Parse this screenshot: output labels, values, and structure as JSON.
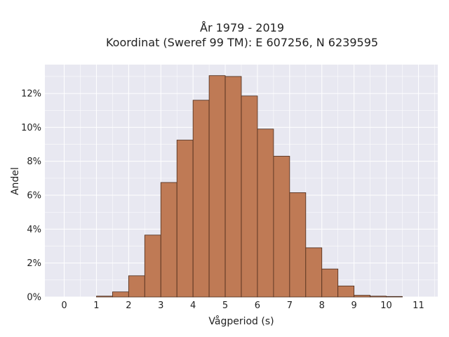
{
  "chart_data": {
    "type": "bar",
    "title_lines": [
      "År 1979 - 2019",
      "Koordinat (Sweref 99 TM): E 607256, N 6239595"
    ],
    "xlabel": "Vågperiod (s)",
    "ylabel": "Andel",
    "x_ticks": [
      "0",
      "1",
      "2",
      "3",
      "4",
      "5",
      "6",
      "7",
      "8",
      "9",
      "10",
      "11"
    ],
    "y_ticks": [
      "0%",
      "2%",
      "4%",
      "6%",
      "8%",
      "10%",
      "12%"
    ],
    "xlim": [
      -0.6,
      11.6
    ],
    "ylim": [
      0,
      13.7
    ],
    "bin_width": 0.5,
    "bins": [
      {
        "x0": 1.0,
        "value": 0.05
      },
      {
        "x0": 1.5,
        "value": 0.3
      },
      {
        "x0": 2.0,
        "value": 1.25
      },
      {
        "x0": 2.5,
        "value": 3.65
      },
      {
        "x0": 3.0,
        "value": 6.75
      },
      {
        "x0": 3.5,
        "value": 9.25
      },
      {
        "x0": 4.0,
        "value": 11.6
      },
      {
        "x0": 4.5,
        "value": 13.05
      },
      {
        "x0": 5.0,
        "value": 13.0
      },
      {
        "x0": 5.5,
        "value": 11.85
      },
      {
        "x0": 6.0,
        "value": 9.9
      },
      {
        "x0": 6.5,
        "value": 8.3
      },
      {
        "x0": 7.0,
        "value": 6.15
      },
      {
        "x0": 7.5,
        "value": 2.9
      },
      {
        "x0": 8.0,
        "value": 1.65
      },
      {
        "x0": 8.5,
        "value": 0.65
      },
      {
        "x0": 9.0,
        "value": 0.1
      },
      {
        "x0": 9.5,
        "value": 0.05
      },
      {
        "x0": 10.0,
        "value": 0.03
      }
    ],
    "grid": true,
    "colors": {
      "bar_fill": "#bf7a55",
      "bar_edge": "#4a2a1a",
      "plot_bg": "#e8e8f1",
      "grid": "#ffffff"
    }
  }
}
